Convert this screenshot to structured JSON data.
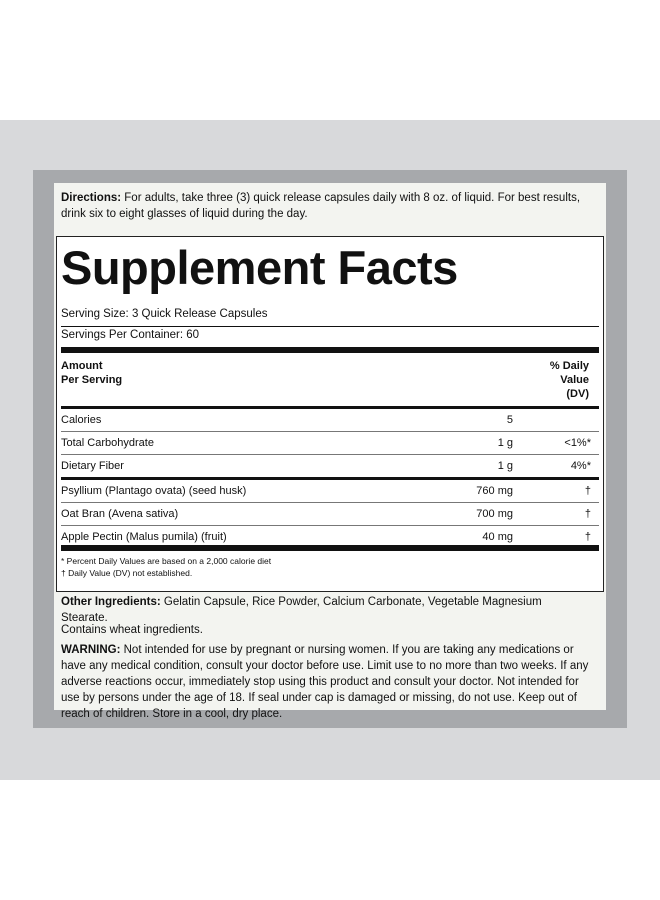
{
  "directions": {
    "label": "Directions:",
    "text": "For adults, take three (3) quick release capsules daily with 8 oz. of liquid. For best results, drink six to eight glasses of liquid during the day."
  },
  "facts": {
    "title": "Supplement Facts",
    "serving_size": "Serving Size: 3 Quick Release Capsules",
    "servings_per_container": "Servings Per Container: 60",
    "header": {
      "amount": [
        "Amount",
        "Per Serving"
      ],
      "dv": [
        "% Daily",
        "Value",
        "(DV)"
      ]
    },
    "rows": [
      [
        "Calories",
        "5",
        null
      ],
      [
        "Total Carbohydrate",
        "1 g",
        "<1%*"
      ],
      [
        "Dietary Fiber",
        "1 g",
        "4%*"
      ],
      [
        "Psyllium (Plantago ovata) (seed husk)",
        "760 mg",
        "†"
      ],
      [
        "Oat Bran (Avena sativa)",
        "700 mg",
        "†"
      ],
      [
        "Apple Pectin (Malus pumila) (fruit)",
        "40 mg",
        "†"
      ]
    ],
    "footnotes": [
      "* Percent Daily Values are based on a 2,000 calorie diet",
      "† Daily Value (DV) not established."
    ]
  },
  "other_ingredients": {
    "label": "Other Ingredients:",
    "text": "Gelatin Capsule, Rice Powder, Calcium Carbonate, Vegetable Magnesium Stearate."
  },
  "contains": "Contains wheat ingredients.",
  "warning": {
    "label": "WARNING:",
    "text": "Not intended for use by pregnant or nursing women. If you are taking any medications or have any medical condition, consult your doctor before use. Limit use to no more than two weeks. If any adverse reactions occur, immediately stop using this product and consult your doctor. Not intended for use by persons under the age of 18. If seal under cap is damaged or missing, do not use. Keep out of reach of children. Store in a cool, dry place."
  }
}
